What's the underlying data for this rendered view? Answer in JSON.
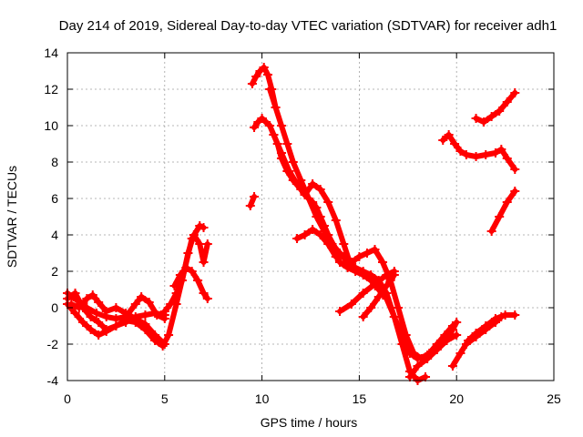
{
  "chart_data": {
    "type": "scatter",
    "title": "Day 214 of 2019, Sidereal Day-to-day VTEC variation (SDTVAR) for receiver adh1",
    "xlabel": "GPS time / hours",
    "ylabel": "SDTVAR / TECUs",
    "xlim": [
      0,
      25
    ],
    "ylim": [
      -4,
      14
    ],
    "xticks": [
      0,
      5,
      10,
      15,
      20,
      25
    ],
    "yticks": [
      -4,
      -2,
      0,
      2,
      4,
      6,
      8,
      10,
      12,
      14
    ],
    "grid": true,
    "color": "#ff0000",
    "series": [
      {
        "x": [
          0.0,
          0.5,
          1.0,
          1.5,
          2.0,
          2.5,
          3.0,
          3.5,
          3.8,
          4.2,
          4.6,
          5.0
        ],
        "y": [
          0.8,
          0.4,
          0.0,
          -0.3,
          -0.5,
          -0.6,
          -0.5,
          0.2,
          0.6,
          0.3,
          -0.4,
          -0.6
        ]
      },
      {
        "x": [
          0.0,
          0.4,
          0.8,
          1.2,
          1.6,
          2.0,
          2.5,
          3.0,
          3.5,
          4.0,
          4.5,
          4.9,
          5.2,
          5.6,
          6.0,
          6.4,
          6.8,
          7.0
        ],
        "y": [
          0.5,
          0.8,
          0.0,
          -0.5,
          -0.8,
          -1.2,
          -1.0,
          -0.7,
          -0.8,
          -1.2,
          -1.8,
          -2.1,
          -1.5,
          0.2,
          2.0,
          3.8,
          4.5,
          4.4
        ]
      },
      {
        "x": [
          0.2,
          0.6,
          1.0,
          1.3,
          1.6,
          2.0,
          2.5,
          3.0,
          3.5,
          4.0,
          4.5,
          5.0
        ],
        "y": [
          0.2,
          0.0,
          0.5,
          0.7,
          0.3,
          -0.2,
          0.0,
          -0.3,
          -0.6,
          -0.9,
          -1.5,
          -2.0
        ]
      },
      {
        "x": [
          0.0,
          0.4,
          0.8,
          1.2,
          1.6,
          2.0,
          2.5,
          3.0,
          3.5,
          4.0,
          4.5,
          5.0
        ],
        "y": [
          0.2,
          -0.3,
          -0.8,
          -1.2,
          -1.5,
          -1.3,
          -1.0,
          -0.8,
          -0.5,
          -0.4,
          -0.3,
          -0.4
        ]
      },
      {
        "x": [
          5.0,
          5.3,
          5.6,
          5.9,
          6.2,
          6.5,
          6.8,
          7.0,
          7.2
        ],
        "y": [
          -0.2,
          0.2,
          0.8,
          1.5,
          3.0,
          4.0,
          3.5,
          2.5,
          3.5
        ]
      },
      {
        "x": [
          5.5,
          5.8,
          6.1,
          6.4,
          6.7,
          7.0,
          7.2
        ],
        "y": [
          1.2,
          1.8,
          2.2,
          2.0,
          1.5,
          0.8,
          0.5
        ]
      },
      {
        "x": [
          9.4,
          9.6
        ],
        "y": [
          5.6,
          6.1
        ]
      },
      {
        "x": [
          9.5,
          9.7,
          9.9,
          10.1,
          10.3,
          10.5,
          10.7
        ],
        "y": [
          12.3,
          12.7,
          13.0,
          13.2,
          12.8,
          12.0,
          11.0
        ]
      },
      {
        "x": [
          9.6,
          9.8,
          10.0,
          10.2,
          10.4,
          10.6,
          10.8,
          11.0,
          11.3,
          11.6,
          12.0,
          12.4,
          12.8,
          13.2,
          13.6,
          14.0,
          14.4,
          14.8,
          15.2,
          15.6,
          16.0,
          16.4,
          16.8,
          17.2,
          17.6,
          18.0,
          18.4
        ],
        "y": [
          9.9,
          10.2,
          10.4,
          10.2,
          10.0,
          9.5,
          9.0,
          8.2,
          7.5,
          7.0,
          6.5,
          6.0,
          5.5,
          4.5,
          3.5,
          2.5,
          2.2,
          2.0,
          1.8,
          1.5,
          1.0,
          0.5,
          -0.5,
          -2.0,
          -3.5,
          -4.0,
          -3.8
        ]
      },
      {
        "x": [
          10.4,
          10.7,
          11.0,
          11.3,
          11.6,
          12.0,
          12.4,
          12.8,
          13.2,
          13.6,
          14.0,
          14.4,
          14.8,
          15.2,
          15.6,
          16.0,
          16.4,
          16.8,
          17.2,
          17.6,
          18.0,
          18.5,
          19.0,
          19.5,
          20.0
        ],
        "y": [
          12.0,
          11.0,
          10.0,
          9.0,
          8.0,
          7.0,
          6.0,
          5.0,
          4.2,
          3.5,
          3.0,
          2.5,
          2.2,
          2.0,
          1.8,
          1.5,
          0.8,
          -0.5,
          -1.5,
          -2.5,
          -2.8,
          -2.6,
          -2.2,
          -1.8,
          -1.5
        ]
      },
      {
        "x": [
          10.6,
          11.0,
          11.4,
          11.8,
          12.2,
          12.6,
          13.0,
          13.4,
          13.8,
          14.2,
          14.6,
          15.0,
          15.4,
          15.8,
          16.2,
          16.6,
          17.0,
          17.4,
          17.8,
          18.2,
          18.6,
          19.0,
          19.4,
          19.8
        ],
        "y": [
          9.5,
          8.5,
          7.5,
          6.8,
          6.2,
          5.8,
          5.0,
          4.0,
          3.2,
          2.8,
          2.5,
          2.8,
          3.0,
          3.2,
          2.5,
          1.5,
          0.0,
          -1.5,
          -2.5,
          -2.8,
          -2.5,
          -2.0,
          -1.5,
          -1.0
        ]
      },
      {
        "x": [
          12.2,
          12.6,
          13.0,
          13.4,
          13.8,
          14.2,
          14.6
        ],
        "y": [
          6.2,
          6.8,
          6.5,
          5.8,
          4.8,
          3.5,
          2.2
        ]
      },
      {
        "x": [
          11.8,
          12.2,
          12.6,
          13.0,
          13.4,
          13.8
        ],
        "y": [
          3.8,
          4.0,
          4.3,
          4.0,
          3.5,
          2.8
        ]
      },
      {
        "x": [
          14.0,
          14.6,
          15.2,
          15.8,
          16.4,
          16.8
        ],
        "y": [
          -0.2,
          0.2,
          0.8,
          1.3,
          1.8,
          2.0
        ]
      },
      {
        "x": [
          15.2,
          15.6,
          16.0,
          16.4,
          16.8
        ],
        "y": [
          -0.5,
          0.0,
          0.6,
          1.2,
          1.8
        ]
      },
      {
        "x": [
          17.6,
          18.0,
          18.5,
          19.0,
          19.5,
          19.8,
          20.0
        ],
        "y": [
          -3.8,
          -3.2,
          -2.8,
          -2.3,
          -1.8,
          -1.2,
          -0.8
        ]
      },
      {
        "x": [
          19.8,
          20.2,
          20.6,
          21.0,
          21.5,
          22.0,
          22.5,
          23.0
        ],
        "y": [
          -3.2,
          -2.5,
          -1.8,
          -1.4,
          -1.0,
          -0.6,
          -0.4,
          -0.4
        ]
      },
      {
        "x": [
          20.5,
          21.0,
          21.5,
          22.0,
          22.3
        ],
        "y": [
          -2.0,
          -1.6,
          -1.2,
          -0.8,
          -0.5
        ]
      },
      {
        "x": [
          19.3,
          19.6,
          19.9,
          20.2,
          20.5,
          21.0,
          21.5,
          22.0,
          22.3,
          22.6,
          23.0
        ],
        "y": [
          9.2,
          9.5,
          9.0,
          8.6,
          8.4,
          8.3,
          8.4,
          8.5,
          8.7,
          8.2,
          7.6
        ]
      },
      {
        "x": [
          21.0,
          21.4,
          21.8,
          22.2,
          22.6,
          23.0
        ],
        "y": [
          10.4,
          10.2,
          10.5,
          10.8,
          11.3,
          11.8
        ]
      },
      {
        "x": [
          21.8,
          22.2,
          22.6,
          23.0
        ],
        "y": [
          4.2,
          5.0,
          5.8,
          6.4
        ]
      }
    ]
  }
}
